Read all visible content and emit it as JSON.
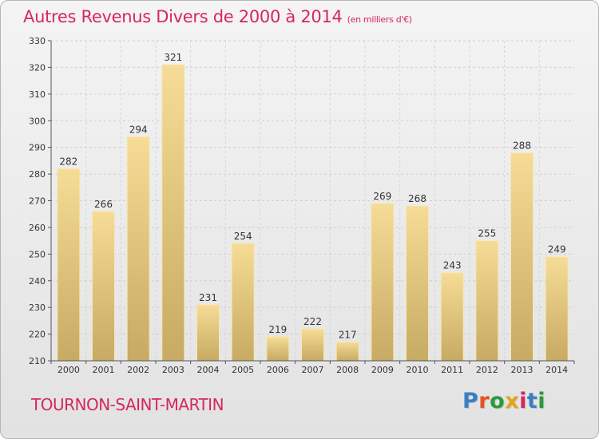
{
  "header": {
    "title": "Autres Revenus Divers de 2000 à 2014",
    "unit": "(en milliers d'€)"
  },
  "footer": {
    "city": "TOURNON-SAINT-MARTIN",
    "brand": {
      "text": "Proxiti",
      "colors": [
        "#3a7fc4",
        "#e8531f",
        "#2a9a3a",
        "#e3a51b",
        "#d6285c",
        "#3a7fc4",
        "#2a9a3a"
      ]
    }
  },
  "chart_data": {
    "type": "bar",
    "title": "Autres Revenus Divers de 2000 à 2014",
    "subtitle": "(en milliers d'€)",
    "categories": [
      "2000",
      "2001",
      "2002",
      "2003",
      "2004",
      "2005",
      "2006",
      "2007",
      "2008",
      "2009",
      "2010",
      "2011",
      "2012",
      "2013",
      "2014"
    ],
    "values": [
      282,
      266,
      294,
      321,
      231,
      254,
      219,
      222,
      217,
      269,
      268,
      243,
      255,
      288,
      249
    ],
    "ylim": [
      210,
      330
    ],
    "yticks": [
      210,
      220,
      230,
      240,
      250,
      260,
      270,
      280,
      290,
      300,
      310,
      320,
      330
    ],
    "grid": true,
    "bar_color_top": "#f6dc96",
    "bar_color_bottom": "#c7aa63"
  }
}
